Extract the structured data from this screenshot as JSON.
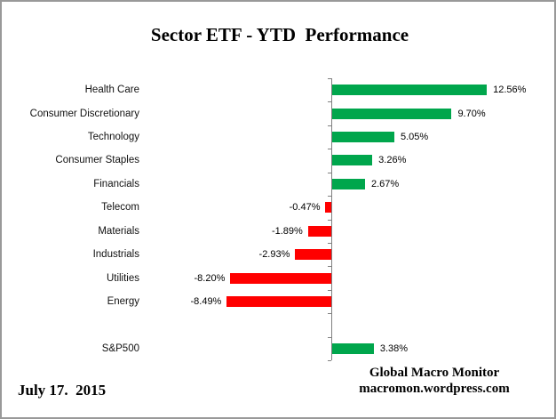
{
  "title": "Sector ETF - YTD  Performance",
  "footer": {
    "date": "July 17.  2015",
    "brand_line1": "Global Macro Monitor",
    "brand_line2": "macromon.wordpress.com"
  },
  "colors": {
    "positive": "#00A64C",
    "negative": "#FF0000",
    "axis": "#808080",
    "frame_border": "#999999"
  },
  "chart_data": {
    "type": "bar",
    "orientation": "horizontal",
    "title": "Sector ETF - YTD  Performance",
    "xlabel": "",
    "ylabel": "",
    "value_suffix": "%",
    "xlim": [
      -10,
      14
    ],
    "grid": false,
    "legend": "none",
    "categories": [
      "Health Care",
      "Consumer Discretionary",
      "Technology",
      "Consumer Staples",
      "Financials",
      "Telecom",
      "Materials",
      "Industrials",
      "Utilities",
      "Energy",
      "",
      "S&P500"
    ],
    "values": [
      12.56,
      9.7,
      5.05,
      3.26,
      2.67,
      -0.47,
      -1.89,
      -2.93,
      -8.2,
      -8.49,
      null,
      3.38
    ],
    "value_labels": [
      "12.56%",
      "9.70%",
      "5.05%",
      "3.26%",
      "2.67%",
      "-0.47%",
      "-1.89%",
      "-2.93%",
      "-8.20%",
      "-8.49%",
      "",
      "3.38%"
    ]
  }
}
